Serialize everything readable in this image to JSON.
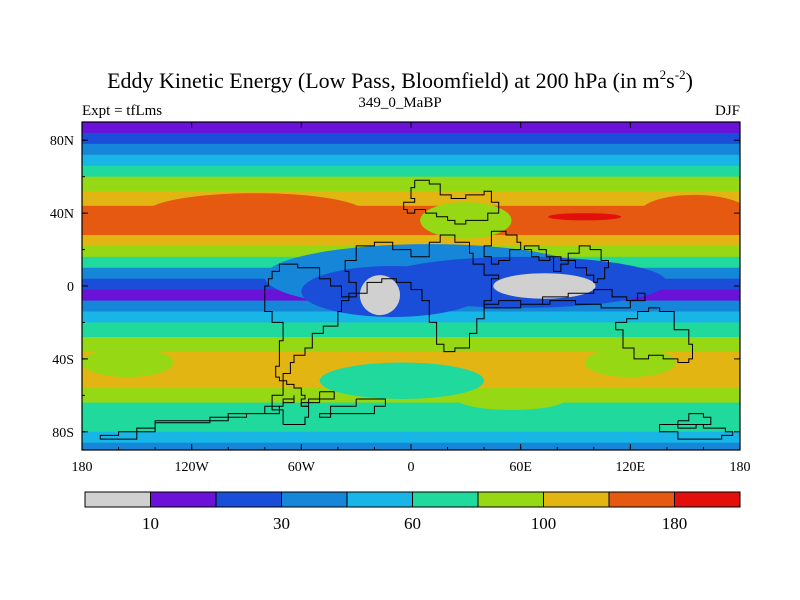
{
  "title": {
    "main": "Eddy Kinetic Energy (Low Pass, Bloomfield) at 200 hPa (in m",
    "sup1": "2",
    "mid": "s",
    "sup2": "-2",
    "end": ")"
  },
  "labels": {
    "expt": "Expt = tfLms",
    "run": "349_0_MaBP",
    "season": "DJF"
  },
  "chart_data": {
    "type": "heatmap",
    "xlabel": "",
    "ylabel": "",
    "xlim": [
      -180,
      180
    ],
    "ylim": [
      -90,
      90
    ],
    "x_ticks": [
      {
        "value": -180,
        "label": "180"
      },
      {
        "value": -120,
        "label": "120W"
      },
      {
        "value": -60,
        "label": "60W"
      },
      {
        "value": 0,
        "label": "0"
      },
      {
        "value": 60,
        "label": "60E"
      },
      {
        "value": 120,
        "label": "120E"
      },
      {
        "value": 180,
        "label": "180"
      }
    ],
    "y_ticks": [
      {
        "value": 80,
        "label": "80N"
      },
      {
        "value": 40,
        "label": "40N"
      },
      {
        "value": 0,
        "label": "0"
      },
      {
        "value": -40,
        "label": "40S"
      },
      {
        "value": -80,
        "label": "80S"
      }
    ],
    "colorbar": {
      "colors": [
        "#d0d0d0",
        "#6a12d8",
        "#1a4ed8",
        "#1686d8",
        "#18b6e6",
        "#20d99c",
        "#96d814",
        "#e3b512",
        "#e55a10",
        "#e30f0c"
      ],
      "labels": [
        {
          "after_box": 1,
          "text": "10"
        },
        {
          "after_box": 3,
          "text": "30"
        },
        {
          "after_box": 5,
          "text": "60"
        },
        {
          "after_box": 7,
          "text": "100"
        },
        {
          "after_box": 9,
          "text": "180"
        }
      ]
    },
    "field_bands_lat_to_level": [
      {
        "lat": 90,
        "level": 1
      },
      {
        "lat": 84,
        "level": 2
      },
      {
        "lat": 78,
        "level": 3
      },
      {
        "lat": 72,
        "level": 4
      },
      {
        "lat": 66,
        "level": 5
      },
      {
        "lat": 60,
        "level": 6
      },
      {
        "lat": 52,
        "level": 7
      },
      {
        "lat": 44,
        "level": 8
      },
      {
        "lat": 36,
        "level": 8
      },
      {
        "lat": 28,
        "level": 7
      },
      {
        "lat": 22,
        "level": 6
      },
      {
        "lat": 16,
        "level": 5
      },
      {
        "lat": 10,
        "level": 3
      },
      {
        "lat": 4,
        "level": 2
      },
      {
        "lat": -2,
        "level": 1
      },
      {
        "lat": -8,
        "level": 3
      },
      {
        "lat": -14,
        "level": 4
      },
      {
        "lat": -20,
        "level": 5
      },
      {
        "lat": -28,
        "level": 6
      },
      {
        "lat": -36,
        "level": 7
      },
      {
        "lat": -46,
        "level": 7
      },
      {
        "lat": -56,
        "level": 6
      },
      {
        "lat": -64,
        "level": 5
      },
      {
        "lat": -72,
        "level": 5
      },
      {
        "lat": -80,
        "level": 4
      },
      {
        "lat": -86,
        "level": 3
      },
      {
        "lat": -90,
        "level": 3
      }
    ],
    "features": [
      {
        "kind": "blob",
        "lon": -85,
        "lat": 40,
        "rlon": 60,
        "rlat": 11,
        "level": 8
      },
      {
        "kind": "blob",
        "lon": 155,
        "lat": 40,
        "rlon": 30,
        "rlat": 10,
        "level": 8
      },
      {
        "kind": "blob",
        "lon": 70,
        "lat": 36,
        "rlon": 55,
        "rlat": 4,
        "level": 8
      },
      {
        "kind": "blob",
        "lon": 95,
        "lat": 38,
        "rlon": 20,
        "rlat": 2,
        "level": 9
      },
      {
        "kind": "blob",
        "lon": 30,
        "lat": 36,
        "rlon": 25,
        "rlat": 10,
        "level": 6
      },
      {
        "kind": "blob",
        "lon": 10,
        "lat": 5,
        "rlon": 90,
        "rlat": 18,
        "level": 3
      },
      {
        "kind": "blob",
        "lon": 60,
        "lat": 2,
        "rlon": 80,
        "rlat": 14,
        "level": 2
      },
      {
        "kind": "blob",
        "lon": -10,
        "lat": -3,
        "rlon": 50,
        "rlat": 14,
        "level": 2
      },
      {
        "kind": "blob",
        "lon": -17,
        "lat": -5,
        "rlon": 11,
        "rlat": 11,
        "level": 0
      },
      {
        "kind": "blob",
        "lon": 73,
        "lat": 0,
        "rlon": 28,
        "rlat": 7,
        "level": 0
      },
      {
        "kind": "blob",
        "lon": -5,
        "lat": -52,
        "rlon": 45,
        "rlat": 10,
        "level": 5
      },
      {
        "kind": "blob",
        "lon": 55,
        "lat": -62,
        "rlon": 30,
        "rlat": 6,
        "level": 6
      },
      {
        "kind": "blob",
        "lon": -155,
        "lat": -42,
        "rlon": 25,
        "rlat": 8,
        "level": 6
      },
      {
        "kind": "blob",
        "lon": 120,
        "lat": -42,
        "rlon": 25,
        "rlat": 8,
        "level": 6
      }
    ],
    "coastlines": [
      [
        [
          -150,
          -82
        ],
        [
          -150,
          -78
        ],
        [
          -140,
          -78
        ],
        [
          -140,
          -74
        ],
        [
          -110,
          -74
        ],
        [
          -100,
          -70
        ],
        [
          -80,
          -66
        ],
        [
          -70,
          -62
        ],
        [
          -64,
          -60
        ],
        [
          -64,
          -64
        ],
        [
          -70,
          -66
        ],
        [
          -72,
          -70
        ],
        [
          -90,
          -72
        ],
        [
          -110,
          -75
        ],
        [
          -140,
          -80
        ],
        [
          -160,
          -82
        ],
        [
          -170,
          -84
        ],
        [
          -150,
          -82
        ]
      ],
      [
        [
          -70,
          -76
        ],
        [
          -58,
          -72
        ],
        [
          -56,
          -66
        ],
        [
          -60,
          -62
        ],
        [
          -58,
          -60
        ],
        [
          -60,
          -56
        ],
        [
          -64,
          -54
        ],
        [
          -68,
          -52
        ],
        [
          -72,
          -50
        ],
        [
          -74,
          -44
        ],
        [
          -72,
          -38
        ],
        [
          -72,
          -30
        ],
        [
          -70,
          -20
        ],
        [
          -76,
          -14
        ],
        [
          -80,
          -6
        ],
        [
          -80,
          0
        ],
        [
          -78,
          4
        ],
        [
          -76,
          8
        ],
        [
          -72,
          12
        ],
        [
          -62,
          10
        ],
        [
          -50,
          4
        ],
        [
          -44,
          0
        ],
        [
          -38,
          -6
        ],
        [
          -34,
          -8
        ],
        [
          -38,
          -14
        ],
        [
          -40,
          -22
        ],
        [
          -48,
          -26
        ],
        [
          -54,
          -34
        ],
        [
          -58,
          -38
        ],
        [
          -64,
          -42
        ],
        [
          -66,
          -48
        ],
        [
          -70,
          -54
        ],
        [
          -70,
          -60
        ],
        [
          -76,
          -68
        ],
        [
          -70,
          -76
        ]
      ],
      [
        [
          -50,
          -58
        ],
        [
          -44,
          -58
        ],
        [
          -42,
          -62
        ],
        [
          -50,
          -64
        ],
        [
          -56,
          -66
        ],
        [
          -60,
          -64
        ],
        [
          -56,
          -62
        ],
        [
          -50,
          -58
        ]
      ],
      [
        [
          -30,
          -62
        ],
        [
          -20,
          -62
        ],
        [
          -14,
          -66
        ],
        [
          -20,
          -70
        ],
        [
          -30,
          -70
        ],
        [
          -44,
          -72
        ],
        [
          -50,
          -70
        ],
        [
          -44,
          -66
        ],
        [
          -30,
          -62
        ]
      ],
      [
        [
          -34,
          -6
        ],
        [
          -30,
          2
        ],
        [
          -34,
          8
        ],
        [
          -36,
          14
        ],
        [
          -30,
          22
        ],
        [
          -20,
          24
        ],
        [
          -10,
          20
        ],
        [
          0,
          16
        ],
        [
          10,
          24
        ],
        [
          16,
          28
        ],
        [
          24,
          24
        ],
        [
          32,
          18
        ],
        [
          34,
          12
        ],
        [
          40,
          6
        ],
        [
          48,
          4
        ],
        [
          44,
          -8
        ],
        [
          40,
          -18
        ],
        [
          36,
          -26
        ],
        [
          32,
          -34
        ],
        [
          24,
          -36
        ],
        [
          18,
          -32
        ],
        [
          14,
          -20
        ],
        [
          10,
          -8
        ],
        [
          6,
          -2
        ],
        [
          0,
          2
        ],
        [
          -8,
          4
        ],
        [
          -16,
          2
        ],
        [
          -24,
          -4
        ],
        [
          -34,
          -6
        ]
      ],
      [
        [
          2,
          58
        ],
        [
          10,
          56
        ],
        [
          16,
          50
        ],
        [
          22,
          48
        ],
        [
          30,
          50
        ],
        [
          40,
          52
        ],
        [
          44,
          46
        ],
        [
          48,
          40
        ],
        [
          42,
          36
        ],
        [
          36,
          36
        ],
        [
          30,
          34
        ],
        [
          24,
          36
        ],
        [
          20,
          38
        ],
        [
          14,
          40
        ],
        [
          8,
          42
        ],
        [
          2,
          40
        ],
        [
          -2,
          42
        ],
        [
          -4,
          46
        ],
        [
          2,
          48
        ],
        [
          0,
          54
        ],
        [
          2,
          58
        ]
      ],
      [
        [
          44,
          30
        ],
        [
          52,
          28
        ],
        [
          58,
          24
        ],
        [
          60,
          20
        ],
        [
          54,
          14
        ],
        [
          48,
          12
        ],
        [
          44,
          16
        ],
        [
          40,
          22
        ],
        [
          44,
          30
        ]
      ],
      [
        [
          62,
          22
        ],
        [
          70,
          20
        ],
        [
          74,
          16
        ],
        [
          78,
          8
        ],
        [
          82,
          12
        ],
        [
          86,
          18
        ],
        [
          92,
          22
        ],
        [
          98,
          20
        ],
        [
          104,
          14
        ],
        [
          108,
          10
        ],
        [
          106,
          4
        ],
        [
          102,
          2
        ],
        [
          100,
          6
        ],
        [
          96,
          10
        ],
        [
          90,
          14
        ],
        [
          82,
          16
        ],
        [
          76,
          14
        ],
        [
          70,
          16
        ],
        [
          66,
          20
        ],
        [
          62,
          22
        ]
      ],
      [
        [
          40,
          -10
        ],
        [
          48,
          -8
        ],
        [
          60,
          -10
        ],
        [
          72,
          -6
        ],
        [
          86,
          -4
        ],
        [
          100,
          -2
        ],
        [
          110,
          -6
        ],
        [
          118,
          -8
        ],
        [
          124,
          -4
        ],
        [
          128,
          -8
        ],
        [
          120,
          -12
        ],
        [
          104,
          -10
        ],
        [
          90,
          -8
        ],
        [
          76,
          -10
        ],
        [
          60,
          -12
        ],
        [
          48,
          -12
        ],
        [
          40,
          -10
        ]
      ],
      [
        [
          112,
          -24
        ],
        [
          116,
          -34
        ],
        [
          122,
          -40
        ],
        [
          130,
          -38
        ],
        [
          138,
          -40
        ],
        [
          146,
          -42
        ],
        [
          152,
          -40
        ],
        [
          154,
          -32
        ],
        [
          152,
          -24
        ],
        [
          144,
          -14
        ],
        [
          136,
          -12
        ],
        [
          130,
          -14
        ],
        [
          124,
          -18
        ],
        [
          118,
          -20
        ],
        [
          112,
          -24
        ]
      ],
      [
        [
          148,
          -76
        ],
        [
          160,
          -78
        ],
        [
          172,
          -80
        ],
        [
          176,
          -82
        ],
        [
          170,
          -84
        ],
        [
          160,
          -84
        ],
        [
          146,
          -80
        ],
        [
          136,
          -76
        ],
        [
          148,
          -76
        ]
      ],
      [
        [
          146,
          -74
        ],
        [
          152,
          -70
        ],
        [
          160,
          -72
        ],
        [
          164,
          -76
        ],
        [
          156,
          -78
        ],
        [
          146,
          -74
        ]
      ]
    ]
  }
}
